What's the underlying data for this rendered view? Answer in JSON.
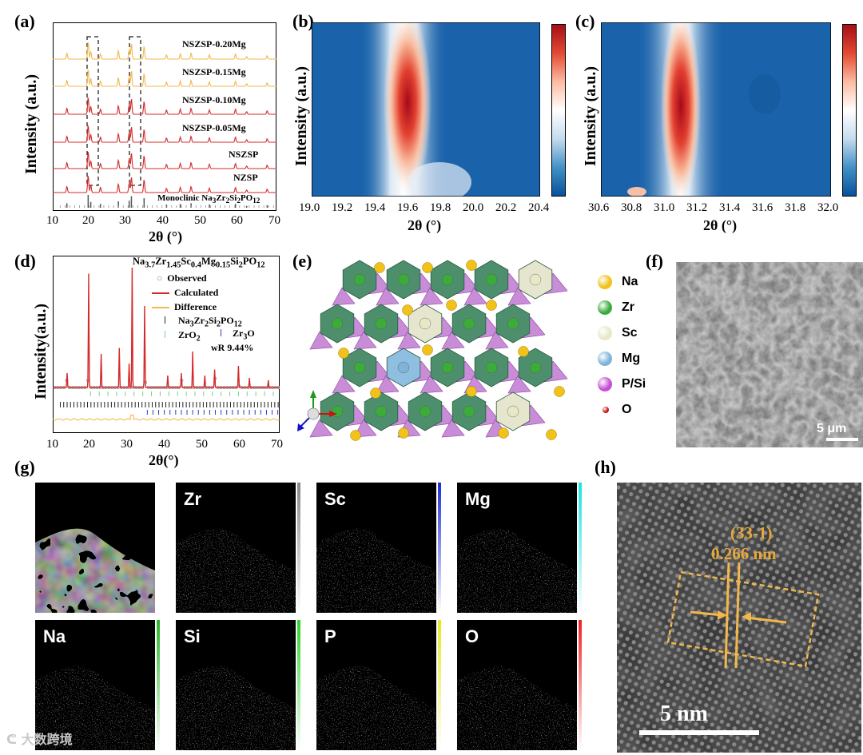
{
  "panel_labels": {
    "a": "(a)",
    "b": "(b)",
    "c": "(c)",
    "d": "(d)",
    "e": "(e)",
    "f": "(f)",
    "g": "(g)",
    "h": "(h)"
  },
  "panel_a": {
    "ylabel": "Intensity (a.u.)",
    "xlabel": "2θ (°)",
    "xticks": [
      "10",
      "20",
      "30",
      "40",
      "50",
      "60",
      "70"
    ],
    "samples": [
      "NSZSP-0.20Mg",
      "NSZSP-0.15Mg",
      "NSZSP-0.10Mg",
      "NSZSP-0.05Mg",
      "NSZSP",
      "NZSP"
    ],
    "reference_label_html": "Monoclinic Na<sub>3</sub>Zr<sub>2</sub>Si<sub>2</sub>PO<sub>12</sub>",
    "colors": {
      "mg": "#f2b84b",
      "pure": "#d42a2a",
      "ref": "#555555"
    }
  },
  "panel_b": {
    "ylabel": "Intensity (a.u.)",
    "xlabel": "2θ (°)",
    "xticks": [
      "19.0",
      "19.2",
      "19.4",
      "19.6",
      "19.8",
      "20.0",
      "20.2",
      "20.4"
    ]
  },
  "panel_c": {
    "ylabel": "Intensity (a.u.)",
    "xlabel": "2θ (°)",
    "xticks": [
      "30.6",
      "30.8",
      "31.0",
      "31.2",
      "31.4",
      "31.6",
      "31.8",
      "32.0"
    ]
  },
  "panel_d": {
    "ylabel": "Intensity(a.u.)",
    "xlabel": "2θ(°)",
    "xticks": [
      "10",
      "20",
      "30",
      "40",
      "50",
      "60",
      "70"
    ],
    "formula_html": "Na<sub>3.7</sub>Zr<sub>1.45</sub>Sc<sub>0.4</sub>Mg<sub>0.15</sub>Si<sub>2</sub>PO<sub>12</sub>",
    "legend_observed": "Observed",
    "legend_calculated": "Calculated",
    "legend_difference": "Difference",
    "legend_phase1_html": "Na<sub>3</sub>Zr<sub>2</sub>Si<sub>2</sub>PO<sub>12</sub>",
    "legend_phase2_html": "ZrO<sub>2</sub>",
    "legend_phase3_html": "Zr<sub>3</sub>O",
    "wr": "wR 9.44%"
  },
  "panel_e": {
    "legend": [
      {
        "label": "Na",
        "color": "#f2c21a"
      },
      {
        "label": "Zr",
        "color": "#3cab3c"
      },
      {
        "label": "Sc",
        "color": "#e8e8c8"
      },
      {
        "label": "Mg",
        "color": "#7fb4d8"
      },
      {
        "label": "P/Si",
        "color": "#c64fd6"
      },
      {
        "label": "O",
        "color": "#cc1111"
      }
    ]
  },
  "panel_f": {
    "scalebar": "5 μm"
  },
  "panel_g": {
    "cells": [
      {
        "label": "",
        "color": "#cfcfcf",
        "strip": ""
      },
      {
        "label": "Zr",
        "color": "#d0d0d0",
        "strip": "#888888"
      },
      {
        "label": "Sc",
        "color": "#1a2a9a",
        "strip": "#1b2bd8"
      },
      {
        "label": "Mg",
        "color": "#1aa6a6",
        "strip": "#1fe0e0"
      },
      {
        "label": "Na",
        "color": "#19a61a",
        "strip": "#2ab32a"
      },
      {
        "label": "Si",
        "color": "#1ea31e",
        "strip": "#28d428"
      },
      {
        "label": "P",
        "color": "#b3b320",
        "strip": "#e8e820"
      },
      {
        "label": "O",
        "color": "#d51a1a",
        "strip": "#ee2222"
      }
    ]
  },
  "panel_h": {
    "plane": "(33-1)",
    "dspacing": "0.266 nm",
    "scalebar": "5 nm"
  },
  "watermark": "大数跨境"
}
